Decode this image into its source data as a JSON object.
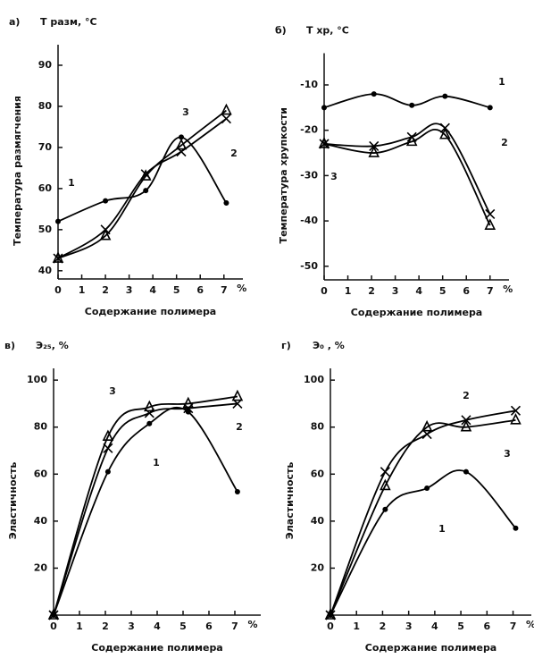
{
  "chart_data": [
    {
      "type": "line",
      "panel": "а)",
      "y_label": "Т разм, °С",
      "ylabel": "Температура размягчения",
      "xlabel": "Содержание полимера",
      "x_unit": "%",
      "x": [
        0,
        2,
        3.7,
        5.2,
        7.1
      ],
      "xlim": [
        0,
        7.8
      ],
      "xticks": [
        0,
        1,
        2,
        3,
        4,
        5,
        6,
        7
      ],
      "ylim": [
        38,
        95
      ],
      "yticks": [
        40,
        50,
        60,
        70,
        80,
        90
      ],
      "series": [
        {
          "name": "1",
          "color": "#000000",
          "marker": "dot",
          "values": [
            52,
            57,
            59.5,
            72.5,
            56.5
          ]
        },
        {
          "name": "2",
          "color": "#000000",
          "marker": "x",
          "values": [
            43,
            50,
            63.5,
            69,
            77
          ]
        },
        {
          "name": "3",
          "color": "#000000",
          "marker": "triangle",
          "values": [
            43,
            48.5,
            63,
            70.5,
            79
          ]
        }
      ]
    },
    {
      "type": "line",
      "panel": "б)",
      "y_label": "Т хр, °С",
      "ylabel": "Температура хрупкости",
      "xlabel": "Содержание полимера",
      "x_unit": "%",
      "x": [
        0,
        2.1,
        3.7,
        5.1,
        7
      ],
      "xlim": [
        0,
        7.8
      ],
      "xticks": [
        0,
        1,
        2,
        3,
        4,
        5,
        6,
        7
      ],
      "ylim": [
        -53,
        -3
      ],
      "yticks": [
        -10,
        -20,
        -30,
        -40,
        -50
      ],
      "series": [
        {
          "name": "1",
          "color": "#000000",
          "marker": "dot",
          "values": [
            -15,
            -12,
            -14.5,
            -12.5,
            -15
          ]
        },
        {
          "name": "2",
          "color": "#000000",
          "marker": "x",
          "values": [
            -23,
            -23.5,
            -21.5,
            -19.5,
            -38.5
          ]
        },
        {
          "name": "3",
          "color": "#000000",
          "marker": "triangle",
          "values": [
            -23,
            -25,
            -22.5,
            -21,
            -41
          ]
        }
      ]
    },
    {
      "type": "line",
      "panel": "в)",
      "y_label": "Э₂₅, %",
      "ylabel": "Эластичность",
      "xlabel": "Содержание полимера",
      "x_unit": "%",
      "x": [
        0,
        2.1,
        3.7,
        5.2,
        7.1
      ],
      "xlim": [
        0,
        8
      ],
      "xticks": [
        0,
        1,
        2,
        3,
        4,
        5,
        6,
        7
      ],
      "ylim": [
        0,
        105
      ],
      "yticks": [
        20,
        40,
        60,
        80,
        100
      ],
      "series": [
        {
          "name": "1",
          "color": "#000000",
          "marker": "dot",
          "values": [
            0,
            61,
            81.5,
            86.5,
            52.5
          ]
        },
        {
          "name": "2",
          "color": "#000000",
          "marker": "x",
          "values": [
            0,
            71,
            86,
            88,
            90
          ]
        },
        {
          "name": "3",
          "color": "#000000",
          "marker": "triangle",
          "values": [
            0,
            76,
            88.5,
            90,
            93
          ]
        }
      ]
    },
    {
      "type": "line",
      "panel": "г)",
      "y_label": "Э₀ , %",
      "ylabel": "Эластичность",
      "xlabel": "Содержание полимера",
      "x_unit": "%",
      "x": [
        0,
        2.1,
        3.7,
        5.2,
        7.1
      ],
      "xlim": [
        0,
        7.7
      ],
      "xticks": [
        0,
        1,
        2,
        3,
        4,
        5,
        6,
        7
      ],
      "ylim": [
        0,
        105
      ],
      "yticks": [
        20,
        40,
        60,
        80,
        100
      ],
      "series": [
        {
          "name": "1",
          "color": "#000000",
          "marker": "dot",
          "values": [
            0,
            45,
            54,
            61,
            37
          ]
        },
        {
          "name": "2",
          "color": "#000000",
          "marker": "x",
          "values": [
            0,
            61,
            77,
            83,
            87
          ]
        },
        {
          "name": "3",
          "color": "#000000",
          "marker": "triangle",
          "values": [
            0,
            55,
            80,
            80,
            83
          ]
        }
      ]
    }
  ]
}
